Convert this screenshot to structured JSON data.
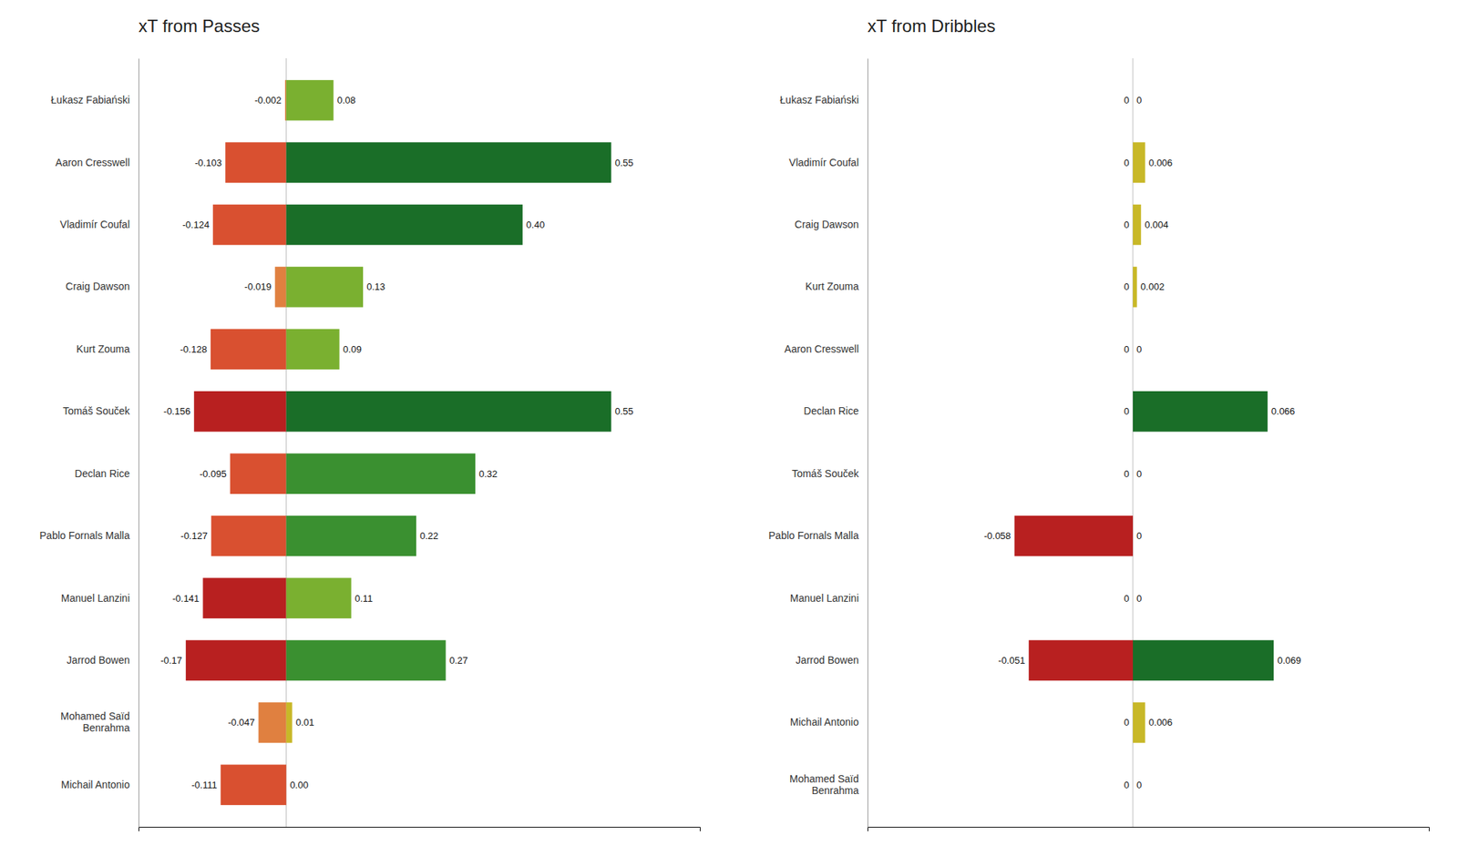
{
  "chart_data": [
    {
      "type": "bar",
      "orientation": "horizontal",
      "stacked": true,
      "title": "xT from Passes",
      "categories": [
        "Łukasz Fabiański",
        "Aaron Cresswell",
        "Vladimír Coufal",
        "Craig Dawson",
        "Kurt Zouma",
        "Tomáš Souček",
        "Declan Rice",
        "Pablo Fornals Malla",
        "Manuel Lanzini",
        "Jarrod Bowen",
        "Mohamed Saïd\nBenrahma",
        "Michail Antonio"
      ],
      "series": [
        {
          "values": [
            -0.002,
            -0.103,
            -0.124,
            -0.019,
            -0.128,
            -0.156,
            -0.095,
            -0.127,
            -0.141,
            -0.17,
            -0.047,
            -0.111
          ],
          "value_labels": [
            "-0.002",
            "-0.103",
            "-0.124",
            "-0.019",
            "-0.128",
            "-0.156",
            "-0.095",
            "-0.127",
            "-0.141",
            "-0.17",
            "-0.047",
            "-0.111"
          ],
          "colors": [
            "#e08040",
            "#d95030",
            "#d95030",
            "#e08040",
            "#d95030",
            "#b82020",
            "#d95030",
            "#d95030",
            "#b82020",
            "#b82020",
            "#e08040",
            "#d95030"
          ]
        },
        {
          "values": [
            0.08,
            0.55,
            0.4,
            0.13,
            0.09,
            0.55,
            0.32,
            0.22,
            0.11,
            0.27,
            0.01,
            0.0
          ],
          "value_labels": [
            "0.08",
            "0.55",
            "0.40",
            "0.13",
            "0.09",
            "0.55",
            "0.32",
            "0.22",
            "0.11",
            "0.27",
            "0.01",
            "0.00"
          ],
          "colors": [
            "#7ab030",
            "#1a6e28",
            "#1a6e28",
            "#7ab030",
            "#7ab030",
            "#1a6e28",
            "#3a9030",
            "#3a9030",
            "#7ab030",
            "#3a9030",
            "#c8b828",
            "#c8b828"
          ]
        }
      ],
      "xlim": [
        -0.25,
        0.7
      ],
      "data_labels": true,
      "tick_labels": "y",
      "grid": false
    },
    {
      "type": "bar",
      "orientation": "horizontal",
      "stacked": true,
      "title": "xT from Dribbles",
      "categories": [
        "Łukasz Fabiański",
        "Vladimír Coufal",
        "Craig Dawson",
        "Kurt Zouma",
        "Aaron Cresswell",
        "Declan Rice",
        "Tomáš Souček",
        "Pablo Fornals Malla",
        "Manuel Lanzini",
        "Jarrod Bowen",
        "Michail Antonio",
        "Mohamed Saïd\nBenrahma"
      ],
      "series": [
        {
          "values": [
            0.0,
            0.0,
            0.0,
            0.0,
            0.0,
            0.0,
            0.0,
            -0.058,
            0.0,
            -0.051,
            0.0,
            0.0
          ],
          "value_labels": [
            "0",
            "0",
            "0",
            "0",
            "0",
            "0",
            "0",
            "-0.058",
            "0",
            "-0.051",
            "0",
            "0"
          ],
          "colors": [
            null,
            null,
            null,
            null,
            null,
            null,
            null,
            "#b82020",
            null,
            "#b82020",
            null,
            null
          ]
        },
        {
          "values": [
            0.0,
            0.006,
            0.004,
            0.002,
            0.0,
            0.066,
            0.0,
            0.0,
            0.0,
            0.069,
            0.006,
            0.0
          ],
          "value_labels": [
            "0",
            "0.006",
            "0.004",
            "0.002",
            "0",
            "0.066",
            "0",
            "0",
            "0",
            "0.069",
            "0.006",
            "0"
          ],
          "colors": [
            null,
            "#c8b828",
            "#c8b828",
            "#c8b828",
            null,
            "#1a6e28",
            null,
            null,
            null,
            "#1a6e28",
            "#c8b828",
            null
          ]
        }
      ],
      "xlim": [
        -0.13,
        0.145
      ],
      "data_labels": true,
      "tick_labels": "y",
      "grid": false
    }
  ]
}
